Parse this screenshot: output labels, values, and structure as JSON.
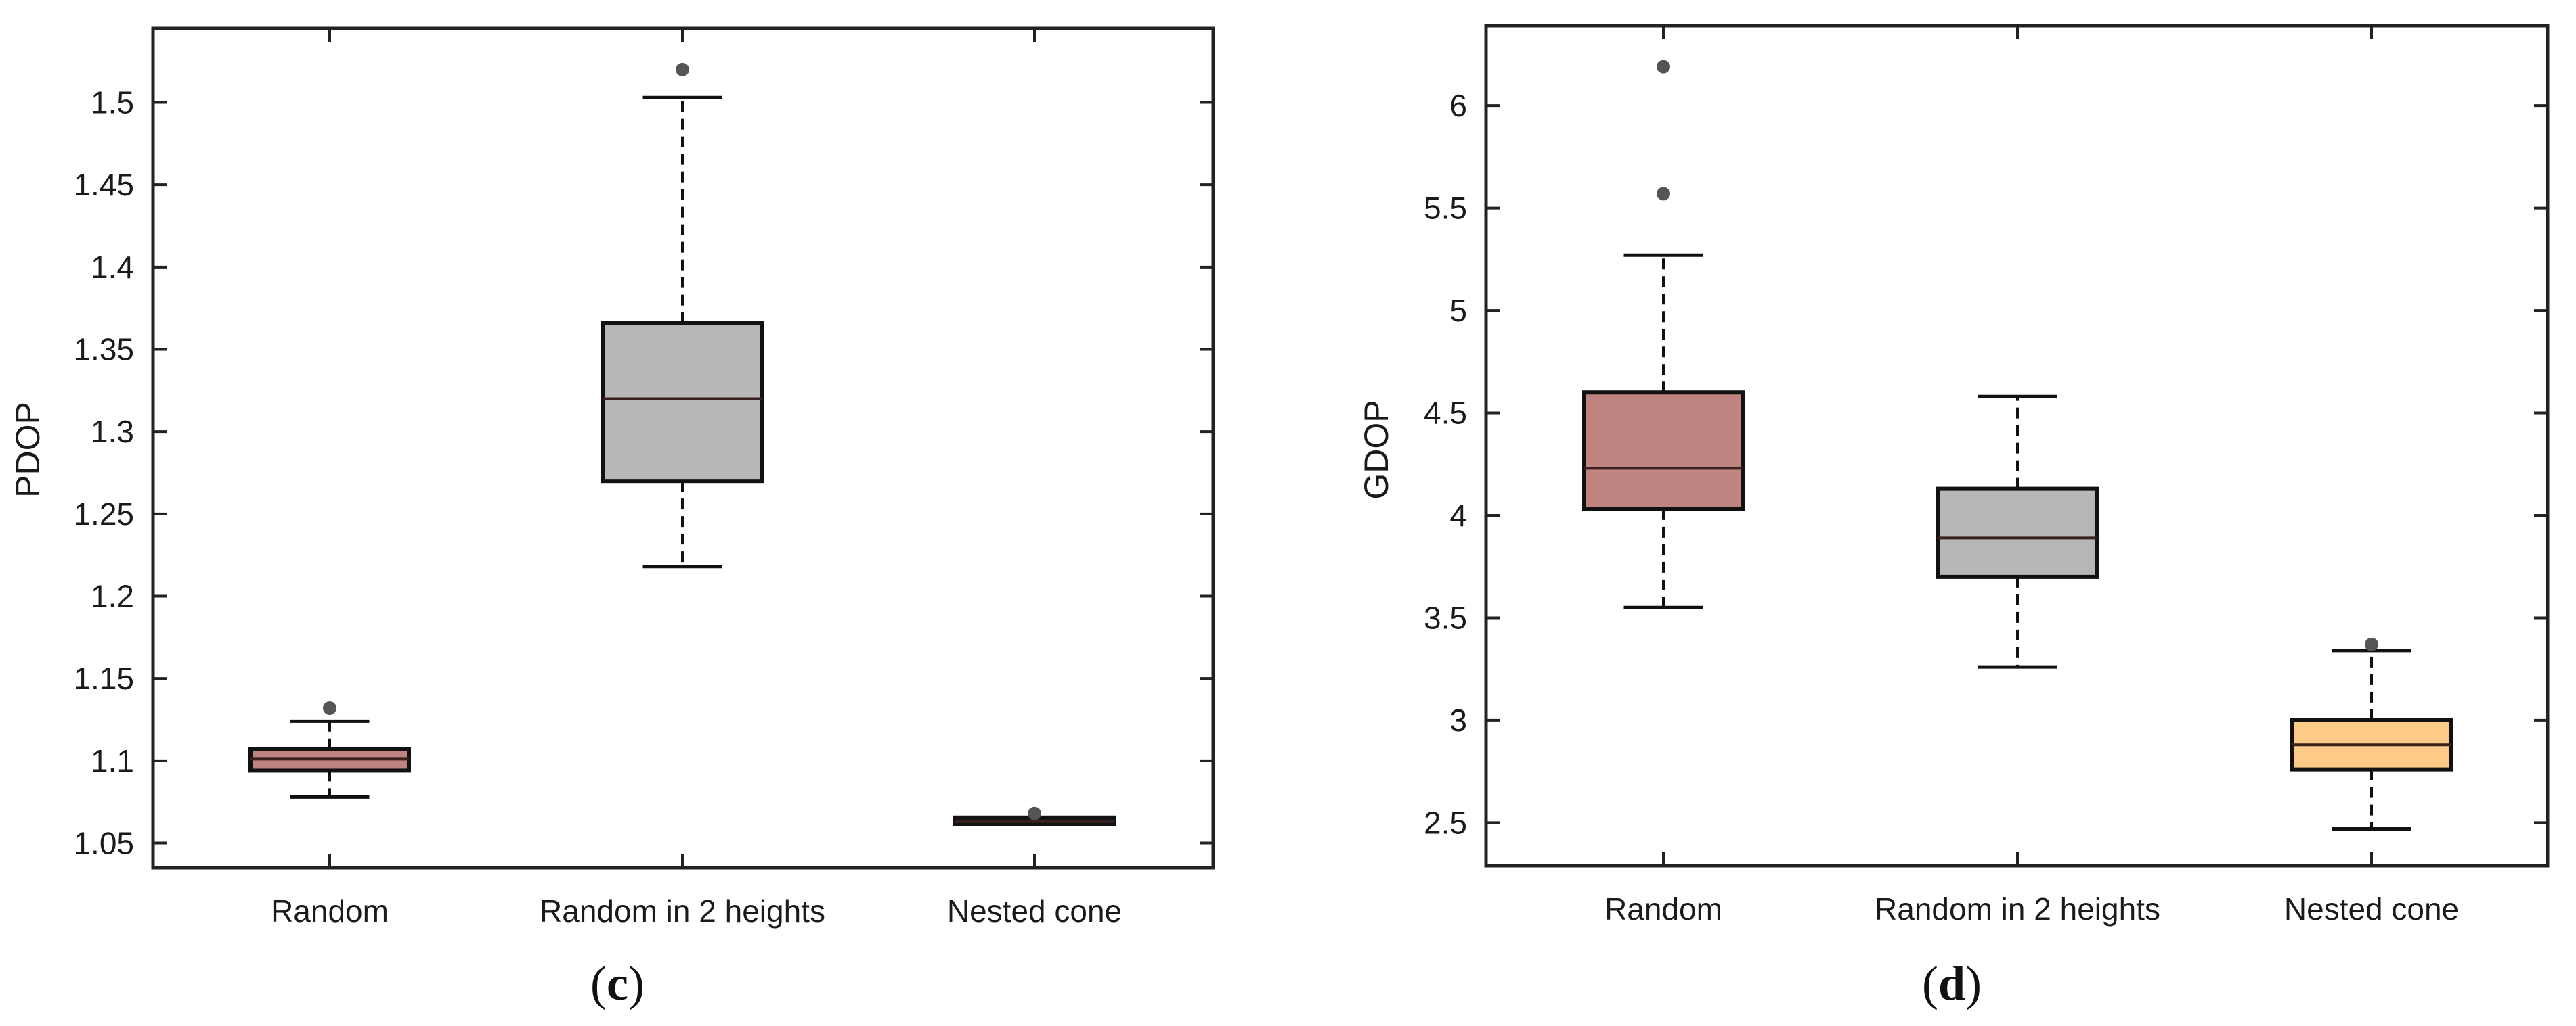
{
  "chart_data": [
    {
      "type": "box",
      "panel_label": "c",
      "title": "",
      "xlabel": "",
      "ylabel": "PDOP",
      "ylim": [
        1.035,
        1.545
      ],
      "yticks": [
        1.05,
        1.1,
        1.15,
        1.2,
        1.25,
        1.3,
        1.35,
        1.4,
        1.45,
        1.5
      ],
      "ytick_labels": [
        "1.05",
        "1.1",
        "1.15",
        "1.2",
        "1.25",
        "1.3",
        "1.35",
        "1.4",
        "1.45",
        "1.5"
      ],
      "categories": [
        "Random",
        "Random in 2 heights",
        "Nested cone"
      ],
      "boxes": [
        {
          "category": "Random",
          "whisker_low": 1.078,
          "q1": 1.094,
          "median": 1.101,
          "q3": 1.107,
          "whisker_high": 1.124,
          "outliers": [
            1.132
          ],
          "color": "#bf847f"
        },
        {
          "category": "Random in 2 heights",
          "whisker_low": 1.218,
          "q1": 1.27,
          "median": 1.32,
          "q3": 1.366,
          "whisker_high": 1.503,
          "outliers": [
            1.52
          ],
          "color": "#b8b7b8"
        },
        {
          "category": "Nested cone",
          "whisker_low": 1.0615,
          "q1": 1.0615,
          "median": 1.063,
          "q3": 1.0655,
          "whisker_high": 1.0655,
          "outliers": [
            1.068
          ],
          "color": "#2a2a2a"
        }
      ]
    },
    {
      "type": "box",
      "panel_label": "d",
      "title": "",
      "xlabel": "",
      "ylabel": "GDOP",
      "ylim": [
        2.29,
        6.39
      ],
      "yticks": [
        2.5,
        3,
        3.5,
        4,
        4.5,
        5,
        5.5,
        6
      ],
      "ytick_labels": [
        "2.5",
        "3",
        "3.5",
        "4",
        "4.5",
        "5",
        "5.5",
        "6"
      ],
      "categories": [
        "Random",
        "Random in 2 heights",
        "Nested cone"
      ],
      "boxes": [
        {
          "category": "Random",
          "whisker_low": 3.55,
          "q1": 4.03,
          "median": 4.23,
          "q3": 4.6,
          "whisker_high": 5.27,
          "outliers": [
            5.57,
            6.19
          ],
          "color": "#bf847f"
        },
        {
          "category": "Random in 2 heights",
          "whisker_low": 3.26,
          "q1": 3.7,
          "median": 3.89,
          "q3": 4.13,
          "whisker_high": 4.58,
          "outliers": [],
          "color": "#b8b7b8"
        },
        {
          "category": "Nested cone",
          "whisker_low": 2.47,
          "q1": 2.76,
          "median": 2.88,
          "q3": 3.0,
          "whisker_high": 3.34,
          "outliers": [
            3.37
          ],
          "color": "#fdca87"
        }
      ]
    }
  ]
}
